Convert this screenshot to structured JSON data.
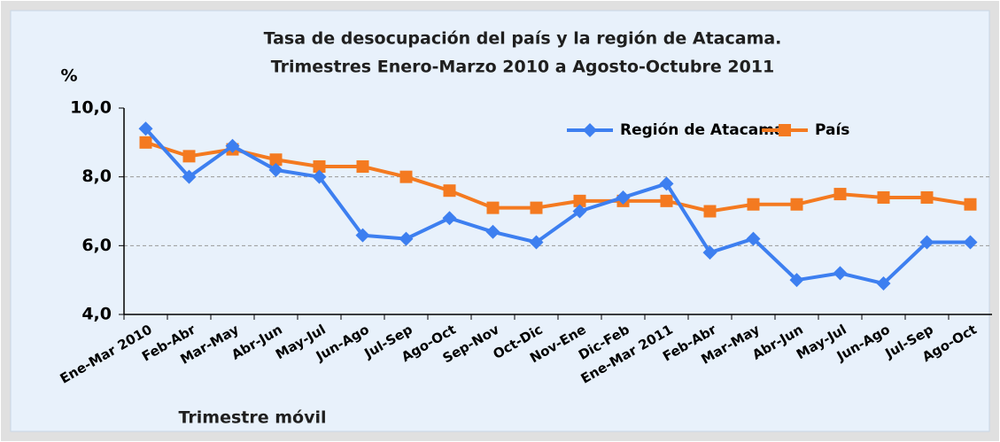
{
  "chart_data": {
    "type": "line",
    "title": "Tasa de desocupación del país y la región de Atacama.",
    "subtitle": "Trimestres Enero-Marzo 2010  a  Agosto-Octubre 2011",
    "y_label": "%",
    "x_label": "Trimestre móvil",
    "categories": [
      "Ene-Mar 2010",
      "Feb-Abr",
      "Mar-May",
      "Abr-Jun",
      "May-Jul",
      "Jun-Ago",
      "Jul-Sep",
      "Ago-Oct",
      "Sep-Nov",
      "Oct-Dic",
      "Nov-Ene",
      "Dic-Feb",
      "Ene-Mar 2011",
      "Feb-Abr",
      "Mar-May",
      "Abr-Jun",
      "May-Jul",
      "Jun-Ago",
      "Jul-Sep",
      "Ago-Oct"
    ],
    "series": [
      {
        "name": "Región de Atacama",
        "color": "#3d7ff0",
        "marker": "diamond",
        "values": [
          9.4,
          8.0,
          8.9,
          8.2,
          8.0,
          6.3,
          6.2,
          6.8,
          6.4,
          6.1,
          7.0,
          7.4,
          7.8,
          5.8,
          6.2,
          5.0,
          5.2,
          4.9,
          6.1,
          6.1
        ]
      },
      {
        "name": "País",
        "color": "#f47a20",
        "marker": "square",
        "values": [
          9.0,
          8.6,
          8.8,
          8.5,
          8.3,
          8.3,
          8.0,
          7.6,
          7.1,
          7.1,
          7.3,
          7.3,
          7.3,
          7.0,
          7.2,
          7.2,
          7.5,
          7.4,
          7.4,
          7.2
        ]
      }
    ],
    "ylim": [
      4,
      10
    ],
    "yticks": [
      {
        "value": 4,
        "label": "4,0"
      },
      {
        "value": 6,
        "label": "6,0"
      },
      {
        "value": 8,
        "label": "8,0"
      },
      {
        "value": 10,
        "label": "10,0"
      }
    ],
    "grid": true,
    "legend": "upper right"
  }
}
